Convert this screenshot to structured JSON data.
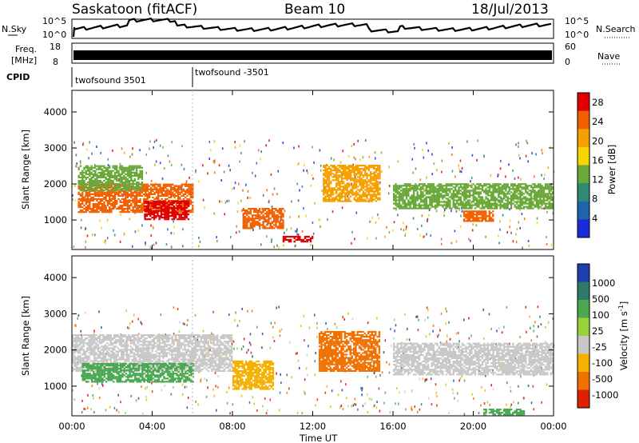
{
  "header": {
    "station": "Saskatoon (fitACF)",
    "beam": "Beam 10",
    "date": "18/Jul/2013"
  },
  "top_panels": {
    "nsky_label": "N.Sky",
    "nsky_ticks": [
      "10^5",
      "10^0"
    ],
    "nsearch_label": "N.Search",
    "nsearch_ticks": [
      "10^5",
      "10^0"
    ],
    "freq_label_1": "Freq.",
    "freq_label_2": "[MHz]",
    "freq_ticks": [
      "18",
      "8"
    ],
    "nave_label": "Nave",
    "nave_ticks": [
      "60",
      "0"
    ],
    "cpid_label": "CPID",
    "cpid_segments": [
      {
        "label": "twofsound 3501",
        "start_hour": 0
      },
      {
        "label": "twofsound -3501",
        "start_hour": 6
      }
    ]
  },
  "chart_data": [
    {
      "type": "heatmap",
      "title": "",
      "xlabel": "",
      "ylabel": "Slant Range [km]",
      "ylim": [
        180,
        4600
      ],
      "yticks": [
        1000,
        2000,
        3000,
        4000
      ],
      "colorbar_label": "Power [dB]",
      "colorbar_ticks": [
        4,
        8,
        12,
        16,
        20,
        24,
        28
      ],
      "colorbar_range": [
        0,
        30
      ],
      "colors": [
        "#1b2bdc",
        "#1f64aa",
        "#2f8a72",
        "#6aa83a",
        "#f5d400",
        "#f5a000",
        "#f06000",
        "#e00000"
      ],
      "regions": [
        {
          "x": [
            0.3,
            6.0
          ],
          "y": [
            1200,
            2000
          ],
          "value": 24
        },
        {
          "x": [
            3.6,
            5.8
          ],
          "y": [
            1000,
            1500
          ],
          "value": 28
        },
        {
          "x": [
            0.3,
            3.5
          ],
          "y": [
            1800,
            2500
          ],
          "value": 12
        },
        {
          "x": [
            8.5,
            10.5
          ],
          "y": [
            750,
            1300
          ],
          "value": 26
        },
        {
          "x": [
            10.5,
            12.0
          ],
          "y": [
            380,
            520
          ],
          "value": 28
        },
        {
          "x": [
            12.5,
            15.3
          ],
          "y": [
            1500,
            2500
          ],
          "value": 20
        },
        {
          "x": [
            19.5,
            21.0
          ],
          "y": [
            950,
            1250
          ],
          "value": 26
        },
        {
          "x": [
            16.0,
            24.0
          ],
          "y": [
            1300,
            2000
          ],
          "value": 12
        }
      ]
    },
    {
      "type": "heatmap",
      "title": "",
      "xlabel": "Time UT",
      "ylabel": "Slant Range [km]",
      "ylim": [
        180,
        4600
      ],
      "yticks": [
        1000,
        2000,
        3000,
        4000
      ],
      "xticks": [
        "00:00",
        "04:00",
        "08:00",
        "12:00",
        "16:00",
        "20:00",
        "00:00"
      ],
      "colorbar_label": "Velocity [m s^-1]",
      "colorbar_ticks": [
        1000,
        500,
        100,
        25,
        -25,
        -100,
        -500,
        -1000
      ],
      "colors": [
        "#1f3fb0",
        "#2d7a6a",
        "#4aa850",
        "#9ad23a",
        "#c8c8c8",
        "#f5b000",
        "#f07000",
        "#e02000",
        "#e00000"
      ],
      "regions": [
        {
          "x": [
            0.0,
            8.0
          ],
          "y": [
            1400,
            2400
          ],
          "value": 0
        },
        {
          "x": [
            0.5,
            6.0
          ],
          "y": [
            1100,
            1600
          ],
          "value": 100
        },
        {
          "x": [
            8.0,
            10.0
          ],
          "y": [
            900,
            1700
          ],
          "value": -100
        },
        {
          "x": [
            12.3,
            15.3
          ],
          "y": [
            1400,
            2500
          ],
          "value": -500
        },
        {
          "x": [
            16.0,
            24.0
          ],
          "y": [
            1300,
            2200
          ],
          "value": 0
        },
        {
          "x": [
            20.5,
            22.5
          ],
          "y": [
            200,
            350
          ],
          "value": 100
        }
      ]
    }
  ],
  "footer": {
    "xlabel": "Time UT"
  }
}
